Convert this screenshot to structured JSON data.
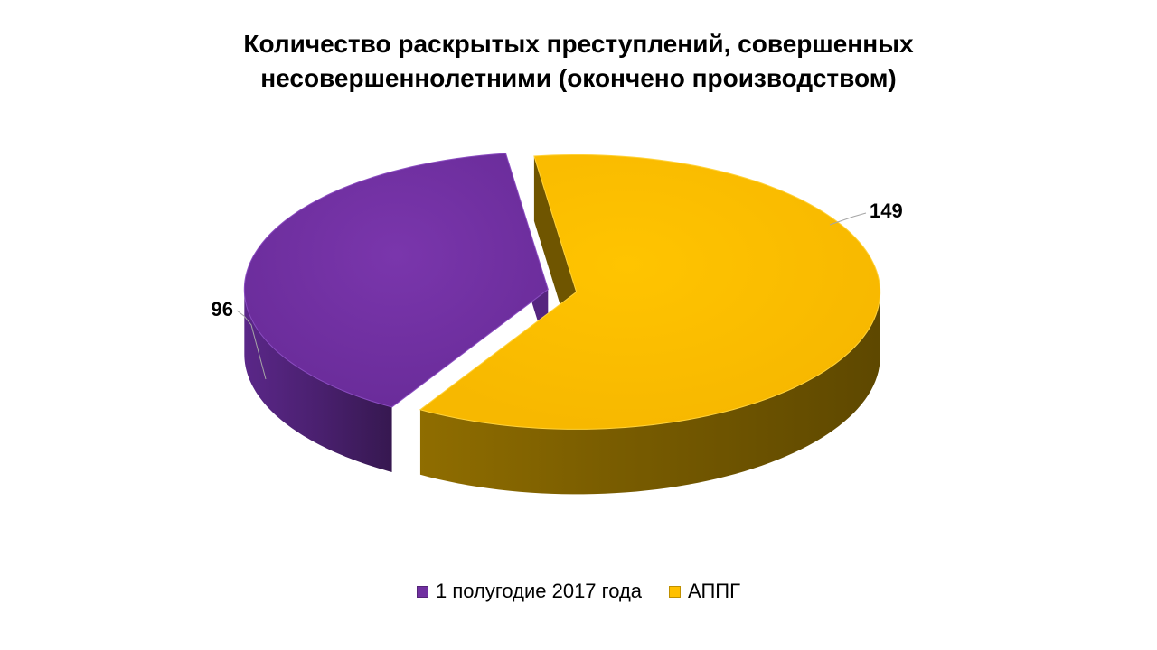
{
  "chart_data": {
    "type": "pie",
    "title": "Количество раскрытых преступлений, совершенных\nнесовершеннолетними (окончено производством)",
    "slices": [
      {
        "label": "1 полугодие 2017 года",
        "value": 96,
        "color": "#7030A0"
      },
      {
        "label": "АППГ",
        "value": 149,
        "color": "#FFC000"
      }
    ],
    "legend_position": "bottom",
    "style": "3d-exploded"
  }
}
